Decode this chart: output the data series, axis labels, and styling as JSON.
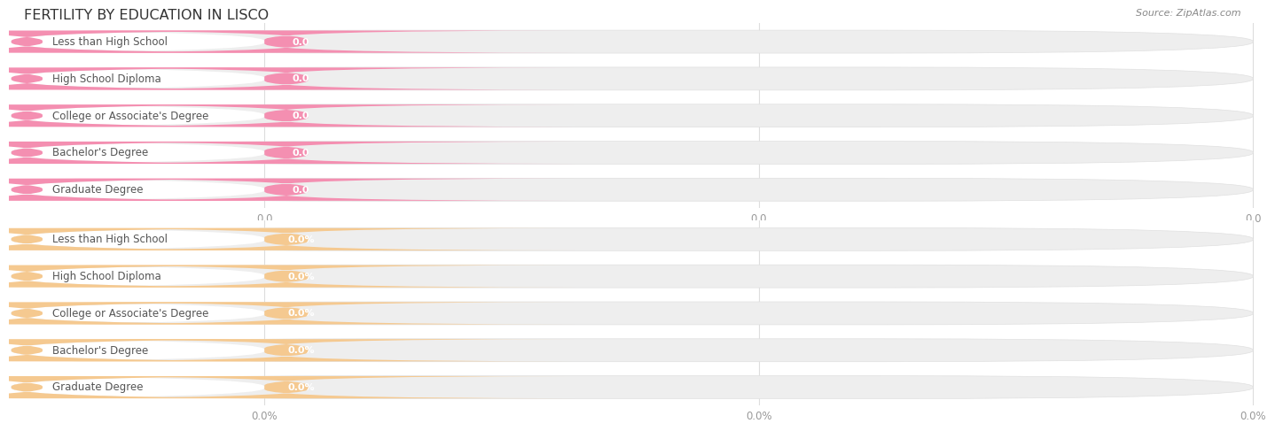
{
  "title": "FERTILITY BY EDUCATION IN LISCO",
  "source": "Source: ZipAtlas.com",
  "categories": [
    "Less than High School",
    "High School Diploma",
    "College or Associate's Degree",
    "Bachelor's Degree",
    "Graduate Degree"
  ],
  "top_values": [
    0.0,
    0.0,
    0.0,
    0.0,
    0.0
  ],
  "bottom_values": [
    0.0,
    0.0,
    0.0,
    0.0,
    0.0
  ],
  "top_bar_color": "#f48fb1",
  "top_bg_color": "#f8d0dc",
  "bottom_bar_color": "#f5c990",
  "bottom_bg_color": "#fde8c8",
  "bar_track_color": "#eeeeee",
  "plot_bg": "#ffffff",
  "title_color": "#333333",
  "label_color": "#555555",
  "value_color_top": "#e8718a",
  "value_color_bottom": "#d4a060",
  "tick_color": "#999999",
  "grid_color": "#dddddd",
  "figsize": [
    14.06,
    4.75
  ],
  "dpi": 100,
  "top_value_suffix": "",
  "bottom_value_suffix": "%",
  "n_xticks": 3,
  "top_xtick_labels": [
    "0.0",
    "0.0",
    "0.0"
  ],
  "bottom_xtick_labels": [
    "0.0%",
    "0.0%",
    "0.0%"
  ]
}
